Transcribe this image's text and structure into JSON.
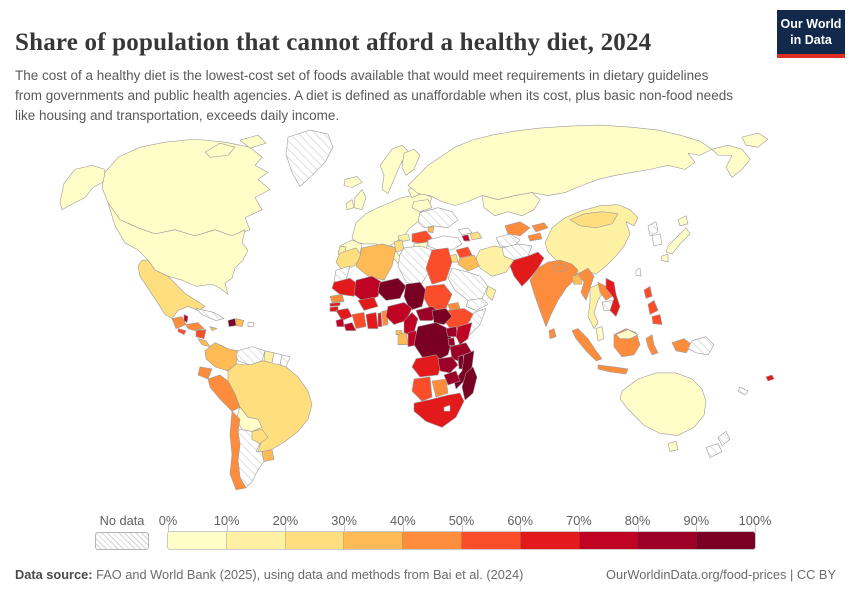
{
  "header": {
    "title": "Share of population that cannot afford a healthy diet, 2024",
    "subtitle": "The cost of a healthy diet is the lowest-cost set of foods available that would meet requirements in dietary guidelines from governments and public health agencies. A diet is defined as unaffordable when its cost, plus basic non-food needs like housing and transportation, exceeds daily income.",
    "logo": {
      "line1": "Our World",
      "line2": "in Data"
    }
  },
  "colors": {
    "brand_navy": "#12294b",
    "brand_red": "#dc2f22",
    "border_gray": "#9c9c9c",
    "nodata_border": "#c2c2c2",
    "text_gray": "#595959"
  },
  "legend": {
    "no_data_label": "No data"
  },
  "footer": {
    "source_label": "Data source:",
    "source_text": " FAO and World Bank (2025), using data and methods from Bai et al. (2024)",
    "right_text": "OurWorldinData.org/food-prices | CC BY"
  },
  "chart_data": {
    "type": "heatmap",
    "subtype": "choropleth-world-map",
    "title": "Share of population that cannot afford a healthy diet, 2024",
    "unit": "%",
    "bins": [
      "0%",
      "10%",
      "20%",
      "30%",
      "40%",
      "50%",
      "60%",
      "70%",
      "80%",
      "90%",
      "100%"
    ],
    "bin_ranges": [
      "0-10%",
      "10-20%",
      "20-30%",
      "30-40%",
      "40-50%",
      "50-60%",
      "60-70%",
      "70-80%",
      "80-90%",
      "90-100%"
    ],
    "bin_colors": [
      "#fffdc8",
      "#fef1a4",
      "#fede7f",
      "#fdba55",
      "#fd8d3c",
      "#fb4d2a",
      "#e31a1c",
      "#c00324",
      "#9d0026",
      "#790023"
    ],
    "no_data_style": "hatched",
    "legend_position": "bottom",
    "regions": {
      "canada": 0,
      "united-states": 0,
      "greenland": "no-data",
      "iceland": 0,
      "mexico": 2,
      "guatemala": 4,
      "belize": 7,
      "honduras": 4,
      "el-salvador": 5,
      "nicaragua": 5,
      "costa-rica": 3,
      "panama": 5,
      "cuba": "no-data",
      "jamaica": 3,
      "haiti": 9,
      "dominican-republic": 3,
      "puerto-rico": "none",
      "colombia": 3,
      "venezuela": "no-data",
      "guyana": 1,
      "suriname": "none",
      "french-guiana": "no-data",
      "ecuador": 4,
      "peru": 4,
      "brazil": 2,
      "bolivia": 0,
      "paraguay": 2,
      "chile": 4,
      "argentina": "no-data",
      "uruguay": 3,
      "scandinavia": 0,
      "finland": 0,
      "united-kingdom": 0,
      "ireland": 0,
      "western-europe": 0,
      "iberia": 0,
      "portugal": 1,
      "italy": 0,
      "greece": 0,
      "albania": 2,
      "hungary": 1,
      "romania": 5,
      "bulgaria": 0,
      "moldova": 3,
      "ukraine": "no-data",
      "belarus": 0,
      "baltics": 0,
      "russia": 0,
      "kazakhstan": 0,
      "turkey": "none",
      "georgia": "none",
      "armenia": 7,
      "azerbaijan": 2,
      "syria": 5,
      "iraq": 3,
      "iran": 1,
      "saudi-arabia": "no-data",
      "yemen": "no-data",
      "oman": 1,
      "jordan": 2,
      "turkmenistan": "no-data",
      "uzbekistan": 4,
      "kyrgyzstan": 4,
      "tajikistan": 4,
      "afghanistan": "no-data",
      "pakistan": 6,
      "india": 4,
      "nepal": 4,
      "bangladesh": 3,
      "sri-lanka": 4,
      "china": 1,
      "mongolia": 2,
      "myanmar": 4,
      "thailand": 1,
      "laos": 4,
      "cambodia": "no-data",
      "vietnam": 6,
      "malaysia": 0,
      "north-korea": "no-data",
      "south-korea": "none",
      "japan": 0,
      "taiwan": "none",
      "philippines": 5,
      "indonesia": 4,
      "papua-new-guinea": "no-data",
      "fiji": 6,
      "new-caledonia": "no-data",
      "australia": 0,
      "new-zealand": "no-data",
      "morocco": 2,
      "western-sahara": "no-data",
      "algeria": 3,
      "tunisia": 2,
      "libya": "no-data",
      "egypt": 5,
      "mauritania": 6,
      "mali": 7,
      "niger": 9,
      "chad": 9,
      "sudan": 5,
      "eritrea": 4,
      "ethiopia": 5,
      "somalia": "no-data",
      "senegal": 4,
      "gambia": 6,
      "guinea-bissau": 6,
      "guinea": 6,
      "sierra-leone": 7,
      "liberia": 7,
      "cote-divoire": 5,
      "ghana": 6,
      "togo": 6,
      "benin": 4,
      "burkina-faso": 6,
      "nigeria": 7,
      "cameroon": 7,
      "central-african-republic": 8,
      "south-sudan": 9,
      "gabon": 3,
      "equatorial-guinea": 3,
      "congo": 7,
      "democratic-republic-of-congo": 9,
      "uganda": 8,
      "kenya": 7,
      "rwanda-burundi": 8,
      "tanzania": 8,
      "angola": 6,
      "zambia": 8,
      "malawi": 9,
      "mozambique": 9,
      "zimbabwe": 8,
      "namibia": 5,
      "botswana": 4,
      "south-africa": 6,
      "lesotho": "none",
      "madagascar": 9
    }
  }
}
